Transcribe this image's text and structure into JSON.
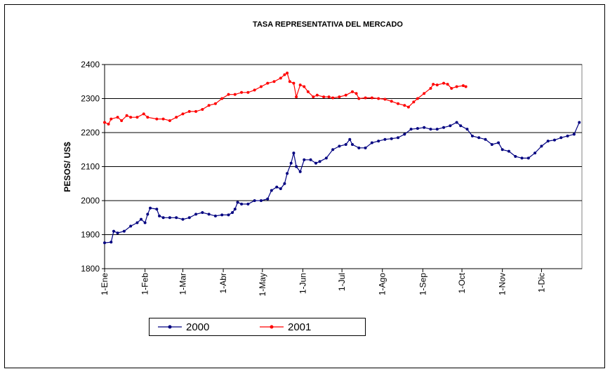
{
  "chart_data": {
    "type": "line",
    "title": "TASA REPRESENTATIVA DEL MERCADO",
    "y_label": "PESOS/ US$",
    "xlim": [
      0,
      366
    ],
    "xticks": [
      {
        "value": 0,
        "label": "1-Ene"
      },
      {
        "value": 31,
        "label": "1-Feb"
      },
      {
        "value": 60,
        "label": "1-Mar"
      },
      {
        "value": 91,
        "label": "1-Abr"
      },
      {
        "value": 121,
        "label": "1-May"
      },
      {
        "value": 152,
        "label": "1-Jun"
      },
      {
        "value": 182,
        "label": "1-Jul"
      },
      {
        "value": 213,
        "label": "1-Ago"
      },
      {
        "value": 244,
        "label": "1-Sep"
      },
      {
        "value": 274,
        "label": "1-Oct"
      },
      {
        "value": 305,
        "label": "1-Nov"
      },
      {
        "value": 335,
        "label": "1-Dic"
      }
    ],
    "ylim": [
      1800,
      2400
    ],
    "yticks": [
      1800,
      1900,
      2000,
      2100,
      2200,
      2300,
      2400
    ],
    "grid": true,
    "legend": "bottom",
    "series": [
      {
        "name": "2000",
        "color": "#000080",
        "x": [
          0,
          5,
          7,
          10,
          15,
          20,
          25,
          28,
          31,
          33,
          35,
          40,
          42,
          45,
          50,
          55,
          60,
          65,
          70,
          75,
          80,
          85,
          90,
          95,
          98,
          100,
          102,
          105,
          110,
          115,
          120,
          125,
          128,
          132,
          135,
          138,
          140,
          143,
          145,
          147,
          150,
          153,
          158,
          162,
          165,
          170,
          175,
          180,
          185,
          188,
          190,
          195,
          200,
          205,
          210,
          215,
          220,
          225,
          230,
          235,
          240,
          245,
          250,
          255,
          260,
          265,
          270,
          273,
          278,
          282,
          287,
          292,
          297,
          302,
          305,
          310,
          315,
          320,
          325,
          330,
          335,
          340,
          345,
          350,
          355,
          360,
          364
        ],
        "values": [
          1876,
          1878,
          1910,
          1905,
          1910,
          1925,
          1935,
          1945,
          1935,
          1960,
          1978,
          1975,
          1955,
          1950,
          1950,
          1950,
          1945,
          1950,
          1960,
          1965,
          1960,
          1955,
          1958,
          1958,
          1965,
          1975,
          1995,
          1990,
          1990,
          2000,
          2000,
          2005,
          2030,
          2040,
          2035,
          2050,
          2080,
          2110,
          2140,
          2100,
          2085,
          2120,
          2120,
          2110,
          2115,
          2125,
          2150,
          2160,
          2165,
          2180,
          2165,
          2155,
          2155,
          2170,
          2175,
          2180,
          2182,
          2185,
          2195,
          2210,
          2212,
          2215,
          2210,
          2210,
          2215,
          2220,
          2230,
          2220,
          2210,
          2190,
          2185,
          2180,
          2165,
          2170,
          2150,
          2145,
          2130,
          2125,
          2125,
          2140,
          2160,
          2175,
          2178,
          2185,
          2190,
          2195,
          2230
        ]
      },
      {
        "name": "2001",
        "color": "#ff0000",
        "x": [
          0,
          3,
          5,
          10,
          13,
          17,
          20,
          25,
          30,
          33,
          40,
          45,
          50,
          55,
          60,
          65,
          70,
          75,
          80,
          85,
          90,
          95,
          100,
          105,
          110,
          115,
          120,
          125,
          130,
          135,
          138,
          140,
          142,
          145,
          147,
          150,
          153,
          156,
          160,
          163,
          168,
          172,
          175,
          180,
          185,
          190,
          193,
          195,
          200,
          205,
          210,
          215,
          220,
          225,
          230,
          233,
          237,
          240,
          245,
          250,
          252,
          255,
          260,
          263,
          266,
          270,
          275,
          277
        ],
        "values": [
          2230,
          2225,
          2240,
          2245,
          2235,
          2250,
          2245,
          2245,
          2255,
          2245,
          2240,
          2240,
          2235,
          2245,
          2255,
          2262,
          2262,
          2268,
          2280,
          2285,
          2300,
          2312,
          2312,
          2318,
          2318,
          2325,
          2335,
          2345,
          2350,
          2360,
          2370,
          2375,
          2350,
          2345,
          2305,
          2340,
          2335,
          2320,
          2305,
          2310,
          2305,
          2305,
          2302,
          2305,
          2310,
          2320,
          2315,
          2300,
          2302,
          2302,
          2300,
          2298,
          2292,
          2285,
          2280,
          2275,
          2290,
          2300,
          2315,
          2330,
          2342,
          2340,
          2345,
          2342,
          2330,
          2335,
          2338,
          2335
        ]
      }
    ]
  }
}
